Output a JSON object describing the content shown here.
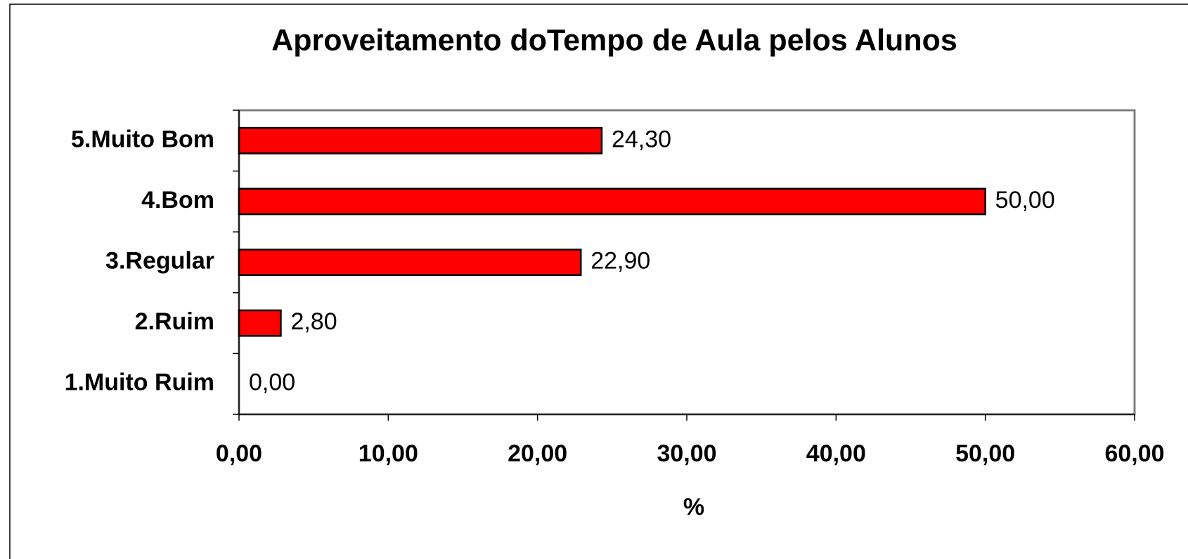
{
  "chart_data": {
    "type": "bar",
    "orientation": "horizontal",
    "title": "Aproveitamento doTempo de Aula pelos Alunos",
    "x_label": "%",
    "categories": [
      "5.Muito Bom",
      "4.Bom",
      "3.Regular",
      "2.Ruim",
      "1.Muito Ruim"
    ],
    "values": [
      24.3,
      50,
      22.9,
      2.8,
      0
    ],
    "value_labels": [
      "24,30",
      "50,00",
      "22,90",
      "2,80",
      "0,00"
    ],
    "color": "#ff0000",
    "xlim": [
      0,
      60
    ],
    "xticks": [
      {
        "value": 0,
        "label": "0,00"
      },
      {
        "value": 10,
        "label": "10,00"
      },
      {
        "value": 20,
        "label": "20,00"
      },
      {
        "value": 30,
        "label": "30,00"
      },
      {
        "value": 40,
        "label": "40,00"
      },
      {
        "value": 50,
        "label": "50,00"
      },
      {
        "value": 60,
        "label": "60,00"
      }
    ],
    "grid": false
  }
}
